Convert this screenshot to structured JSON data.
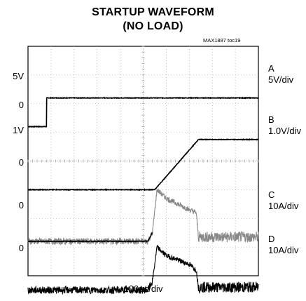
{
  "chart_data": {
    "type": "line",
    "title": "STARTUP WAVEFORM",
    "subtitle": "(NO LOAD)",
    "figure_id": "MAX1887 toc19",
    "xlabel": "100µs/div",
    "x_divisions": 10,
    "y_divisions": 8,
    "grid": true,
    "x_unit": "div",
    "channels": [
      {
        "name": "A",
        "scale": "5V/div",
        "levels": [
          "5V",
          "0"
        ],
        "ground_div": -2.8,
        "points": [
          [
            0,
            0
          ],
          [
            0.8,
            0
          ],
          [
            0.8,
            1.0
          ],
          [
            10,
            1.0
          ]
        ]
      },
      {
        "name": "B",
        "scale": "1.0V/div",
        "levels": [
          "1V",
          "0"
        ],
        "ground_div": -5.0,
        "points": [
          [
            0,
            0
          ],
          [
            5.5,
            0
          ],
          [
            7.4,
            1.75
          ],
          [
            10,
            1.75
          ]
        ]
      },
      {
        "name": "C",
        "scale": "10A/div",
        "levels": [
          "0"
        ],
        "ground_div": -6.8,
        "points": [
          [
            0,
            0
          ],
          [
            5.2,
            0
          ],
          [
            5.4,
            0.3
          ],
          [
            5.6,
            1.8
          ],
          [
            6.0,
            1.5
          ],
          [
            7.0,
            1.1
          ],
          [
            7.3,
            1.0
          ],
          [
            7.4,
            0.15
          ],
          [
            10,
            0.15
          ]
        ]
      },
      {
        "name": "D",
        "scale": "10A/div",
        "levels": [
          "0"
        ],
        "ground_div": -8.5,
        "points": [
          [
            0,
            0
          ],
          [
            5.2,
            0
          ],
          [
            5.4,
            0.3
          ],
          [
            5.6,
            1.5
          ],
          [
            6.0,
            1.2
          ],
          [
            7.0,
            0.9
          ],
          [
            7.3,
            0.7
          ],
          [
            7.4,
            0.1
          ],
          [
            10,
            0.1
          ]
        ]
      }
    ]
  },
  "colors": {
    "trace": "#000000",
    "trace_C_noise": "#888888",
    "grid": "#999999"
  }
}
